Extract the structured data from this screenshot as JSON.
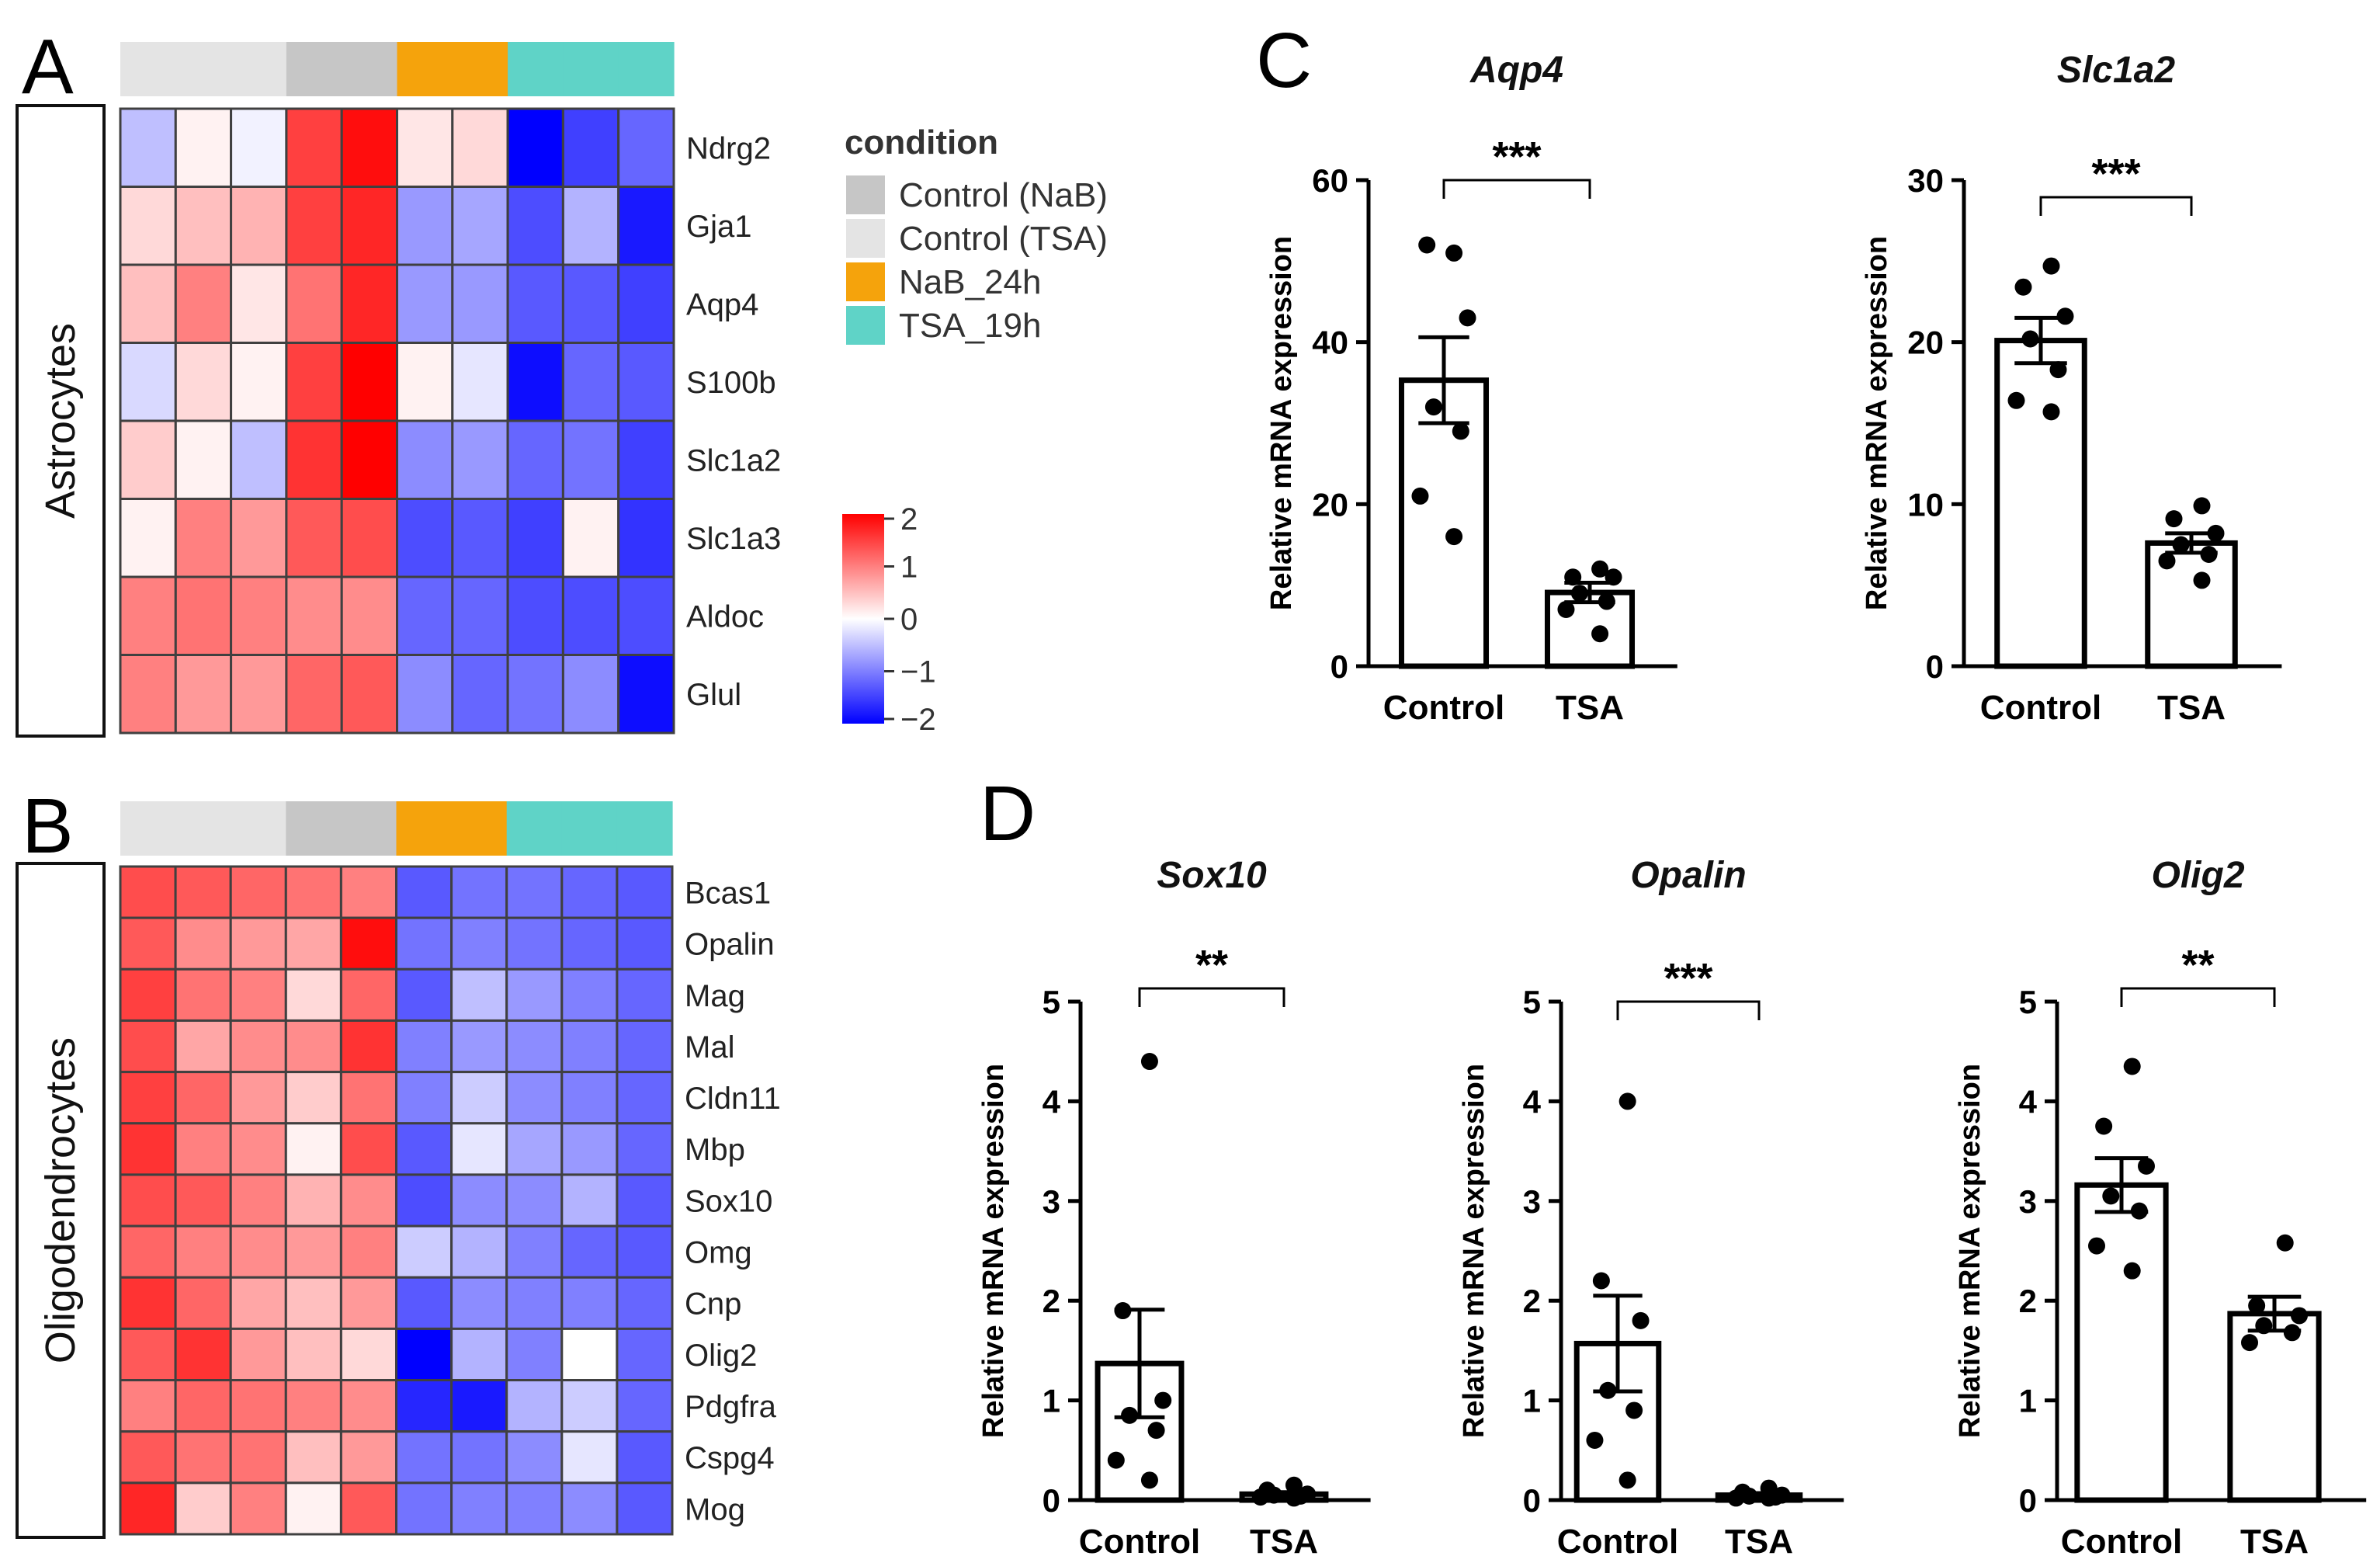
{
  "panels": {
    "A": "A",
    "B": "B",
    "C": "C",
    "D": "D"
  },
  "legend": {
    "title": "condition",
    "items": [
      {
        "label": "Control (NaB)",
        "color": "#c6c6c6"
      },
      {
        "label": "Control (TSA)",
        "color": "#e4e4e4"
      },
      {
        "label": "NaB_24h",
        "color": "#f5a30c"
      },
      {
        "label": "TSA_19h",
        "color": "#5fd3c7"
      }
    ],
    "scale": {
      "min": -2,
      "max": 2,
      "ticks": [
        "2",
        "1",
        "0",
        "−1",
        "−2"
      ]
    }
  },
  "chart_data": [
    {
      "type": "heatmap",
      "panel": "A",
      "title": "Astrocytes",
      "column_conditions": [
        "Control (TSA)",
        "Control (TSA)",
        "Control (TSA)",
        "Control (NaB)",
        "Control (NaB)",
        "NaB_24h",
        "NaB_24h",
        "TSA_19h",
        "TSA_19h",
        "TSA_19h"
      ],
      "rows": [
        "Ndrg2",
        "Gja1",
        "Aqp4",
        "S100b",
        "Slc1a2",
        "Slc1a3",
        "Aldoc",
        "Glul"
      ],
      "values": [
        [
          -0.5,
          0.1,
          -0.1,
          1.5,
          1.9,
          0.2,
          0.3,
          -2.0,
          -1.5,
          -1.2
        ],
        [
          0.3,
          0.5,
          0.6,
          1.5,
          1.7,
          -0.8,
          -0.7,
          -1.4,
          -0.6,
          -1.8
        ],
        [
          0.5,
          1.0,
          0.2,
          1.1,
          1.7,
          -0.8,
          -0.8,
          -1.3,
          -1.3,
          -1.5
        ],
        [
          -0.3,
          0.3,
          0.1,
          1.5,
          2.0,
          0.1,
          -0.2,
          -1.9,
          -1.2,
          -1.3
        ],
        [
          0.4,
          0.1,
          -0.5,
          1.6,
          2.0,
          -0.9,
          -0.8,
          -1.2,
          -1.1,
          -1.5
        ],
        [
          0.1,
          1.0,
          0.8,
          1.3,
          1.4,
          -1.4,
          -1.3,
          -1.5,
          0.1,
          -1.6
        ],
        [
          1.0,
          1.1,
          1.0,
          0.9,
          0.9,
          -1.2,
          -1.2,
          -1.4,
          -1.4,
          -1.4
        ],
        [
          1.0,
          0.8,
          0.8,
          1.2,
          1.3,
          -0.9,
          -1.2,
          -1.1,
          -0.9,
          -1.9
        ]
      ]
    },
    {
      "type": "heatmap",
      "panel": "B",
      "title": "Oligodendrocytes",
      "column_conditions": [
        "Control (TSA)",
        "Control (TSA)",
        "Control (TSA)",
        "Control (NaB)",
        "Control (NaB)",
        "NaB_24h",
        "NaB_24h",
        "TSA_19h",
        "TSA_19h",
        "TSA_19h"
      ],
      "rows": [
        "Bcas1",
        "Opalin",
        "Mag",
        "Mal",
        "Cldn11",
        "Mbp",
        "Sox10",
        "Omg",
        "Cnp",
        "Olig2",
        "Pdgfra",
        "Cspg4",
        "Mog"
      ],
      "values": [
        [
          1.4,
          1.3,
          1.2,
          1.1,
          1.0,
          -1.3,
          -1.1,
          -1.1,
          -1.2,
          -1.3
        ],
        [
          1.3,
          0.9,
          0.8,
          0.7,
          1.9,
          -1.1,
          -1.0,
          -1.1,
          -1.2,
          -1.3
        ],
        [
          1.5,
          1.1,
          1.0,
          0.3,
          1.2,
          -1.3,
          -0.5,
          -0.8,
          -1.0,
          -1.2
        ],
        [
          1.4,
          0.7,
          0.9,
          0.9,
          1.6,
          -1.0,
          -0.8,
          -0.9,
          -1.0,
          -1.2
        ],
        [
          1.5,
          1.2,
          0.8,
          0.4,
          1.1,
          -1.0,
          -0.4,
          -0.9,
          -1.0,
          -1.2
        ],
        [
          1.6,
          1.0,
          0.9,
          0.1,
          1.4,
          -1.3,
          -0.2,
          -0.7,
          -0.8,
          -1.2
        ],
        [
          1.4,
          1.3,
          1.0,
          0.6,
          0.9,
          -1.4,
          -0.9,
          -0.9,
          -0.6,
          -1.3
        ],
        [
          1.2,
          1.0,
          0.9,
          0.8,
          1.0,
          -0.4,
          -0.6,
          -1.0,
          -1.2,
          -1.3
        ],
        [
          1.6,
          1.2,
          0.7,
          0.5,
          0.8,
          -1.3,
          -0.9,
          -1.0,
          -1.0,
          -1.2
        ],
        [
          1.3,
          1.6,
          0.8,
          0.5,
          0.3,
          -2.0,
          -0.6,
          -1.0,
          0.0,
          -1.2
        ],
        [
          1.0,
          1.2,
          1.1,
          1.0,
          0.9,
          -1.7,
          -1.8,
          -0.6,
          -0.4,
          -1.2
        ],
        [
          1.3,
          1.1,
          1.1,
          0.5,
          0.8,
          -1.1,
          -1.1,
          -0.9,
          -0.2,
          -1.3
        ],
        [
          1.7,
          0.4,
          1.0,
          0.1,
          1.3,
          -1.1,
          -1.0,
          -1.0,
          -0.9,
          -1.3
        ]
      ]
    },
    {
      "type": "bar",
      "panel": "C",
      "title": "Aqp4",
      "categories": [
        "Control",
        "TSA"
      ],
      "values": [
        35.3,
        9.1
      ],
      "sem": [
        5.3,
        1.2
      ],
      "points": [
        [
          51,
          52,
          43,
          32,
          29,
          21,
          16
        ],
        [
          12,
          11,
          11,
          9,
          8,
          7,
          4
        ]
      ],
      "significance": "***",
      "ylabel": "Relative mRNA expression",
      "ylim": [
        0,
        60
      ],
      "yticks": [
        "0",
        "20",
        "40",
        "60"
      ]
    },
    {
      "type": "bar",
      "panel": "C",
      "title": "Slc1a2",
      "categories": [
        "Control",
        "TSA"
      ],
      "values": [
        20.1,
        7.6
      ],
      "sem": [
        1.4,
        0.6
      ],
      "points": [
        [
          24.7,
          23.4,
          21.6,
          20.2,
          18.3,
          16.4,
          15.7
        ],
        [
          9.9,
          9.1,
          8.2,
          7.5,
          6.9,
          6.5,
          5.3
        ]
      ],
      "significance": "***",
      "ylabel": "Relative mRNA expression",
      "ylim": [
        0,
        30
      ],
      "yticks": [
        "0",
        "10",
        "20",
        "30"
      ]
    },
    {
      "type": "bar",
      "panel": "D",
      "title": "Sox10",
      "categories": [
        "Control",
        "TSA"
      ],
      "values": [
        1.37,
        0.06
      ],
      "sem": [
        0.54,
        0.02
      ],
      "points": [
        [
          4.4,
          1.9,
          1.0,
          0.85,
          0.7,
          0.4,
          0.2
        ],
        [
          0.15,
          0.1,
          0.06,
          0.05,
          0.04,
          0.03,
          0.02
        ]
      ],
      "significance": "**",
      "ylabel": "Relative mRNA expression",
      "ylim": [
        0,
        5
      ],
      "yticks": [
        "0",
        "1",
        "2",
        "3",
        "4",
        "5"
      ]
    },
    {
      "type": "bar",
      "panel": "D",
      "title": "Opalin",
      "categories": [
        "Control",
        "TSA"
      ],
      "values": [
        1.57,
        0.05
      ],
      "sem": [
        0.48,
        0.02
      ],
      "points": [
        [
          4.0,
          2.2,
          1.8,
          1.1,
          0.9,
          0.6,
          0.2
        ],
        [
          0.12,
          0.08,
          0.05,
          0.04,
          0.03,
          0.02,
          0.02
        ]
      ],
      "significance": "***",
      "ylabel": "Relative mRNA expression",
      "ylim": [
        0,
        5
      ],
      "yticks": [
        "0",
        "1",
        "2",
        "3",
        "4",
        "5"
      ]
    },
    {
      "type": "bar",
      "panel": "D",
      "title": "Olig2",
      "categories": [
        "Control",
        "TSA"
      ],
      "values": [
        3.16,
        1.87
      ],
      "sem": [
        0.27,
        0.17
      ],
      "points": [
        [
          4.35,
          3.75,
          3.35,
          3.05,
          2.9,
          2.55,
          2.3
        ],
        [
          2.58,
          1.95,
          1.85,
          1.75,
          1.68,
          1.58
        ]
      ],
      "significance": "**",
      "ylabel": "Relative mRNA expression",
      "ylim": [
        0,
        5
      ],
      "yticks": [
        "0",
        "1",
        "2",
        "3",
        "4",
        "5"
      ]
    }
  ]
}
